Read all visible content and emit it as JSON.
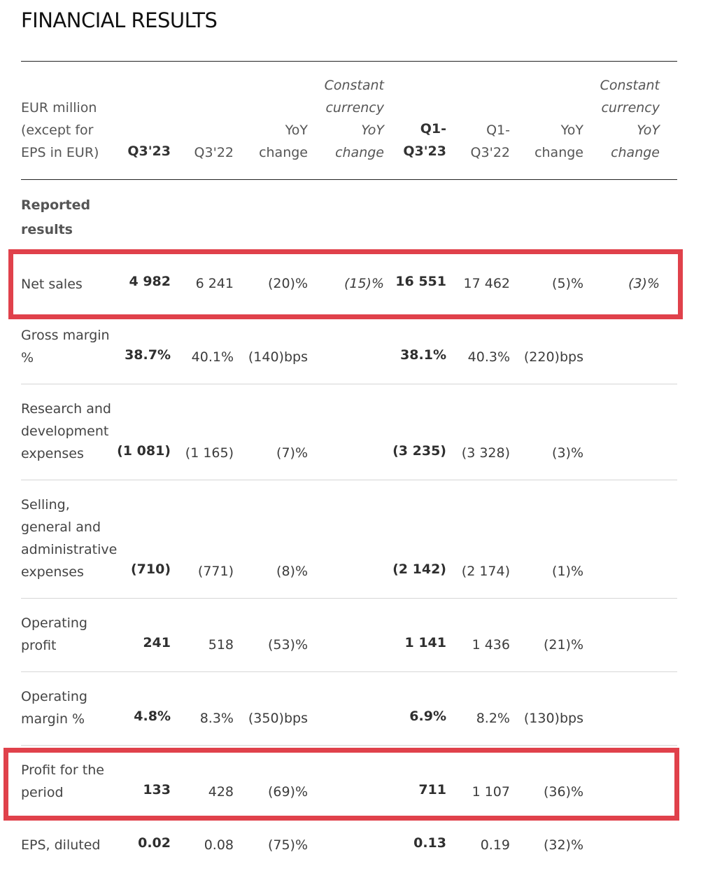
{
  "title": "FINANCIAL RESULTS",
  "header": {
    "unit_label": [
      "EUR million",
      "(except for",
      "EPS in EUR)"
    ],
    "q3_23": "Q3'23",
    "q3_22": "Q3'22",
    "yoy": [
      "YoY",
      "change"
    ],
    "cc": [
      "Constant",
      "currency",
      "YoY",
      "change"
    ],
    "q1q3_23": [
      "Q1-",
      "Q3'23"
    ],
    "q1q3_22": [
      "Q1-",
      "Q3'22"
    ],
    "yoy2": [
      "YoY",
      "change"
    ],
    "cc2": [
      "Constant",
      "currency",
      "YoY",
      "change"
    ]
  },
  "section_label": [
    "Reported",
    "results"
  ],
  "rows": [
    {
      "label": [
        "Net sales"
      ],
      "q3_23": "4 982",
      "q3_22": "6 241",
      "yoy": "(20)%",
      "cc": "(15)%",
      "ytd_23": "16 551",
      "ytd_22": "17 462",
      "yoy2": "(5)%",
      "cc2": "(3)%",
      "highlighted": true
    },
    {
      "label": [
        "Gross margin",
        "%"
      ],
      "q3_23": "38.7%",
      "q3_22": "40.1%",
      "yoy": "(140)bps",
      "cc": "",
      "ytd_23": "38.1%",
      "ytd_22": "40.3%",
      "yoy2": "(220)bps",
      "cc2": ""
    },
    {
      "label": [
        "Research and",
        "development",
        "expenses"
      ],
      "q3_23": "(1 081)",
      "q3_22": "(1 165)",
      "yoy": "(7)%",
      "cc": "",
      "ytd_23": "(3 235)",
      "ytd_22": "(3 328)",
      "yoy2": "(3)%",
      "cc2": ""
    },
    {
      "label": [
        "Selling,",
        "general and",
        "administrative",
        "expenses"
      ],
      "q3_23": "(710)",
      "q3_22": "(771)",
      "yoy": "(8)%",
      "cc": "",
      "ytd_23": "(2 142)",
      "ytd_22": "(2 174)",
      "yoy2": "(1)%",
      "cc2": ""
    },
    {
      "label": [
        "Operating",
        "profit"
      ],
      "q3_23": "241",
      "q3_22": "518",
      "yoy": "(53)%",
      "cc": "",
      "ytd_23": "1 141",
      "ytd_22": "1 436",
      "yoy2": "(21)%",
      "cc2": ""
    },
    {
      "label": [
        "Operating",
        "margin %"
      ],
      "q3_23": "4.8%",
      "q3_22": "8.3%",
      "yoy": "(350)bps",
      "cc": "",
      "ytd_23": "6.9%",
      "ytd_22": "8.2%",
      "yoy2": "(130)bps",
      "cc2": ""
    },
    {
      "label": [
        "Profit for the",
        "period"
      ],
      "q3_23": "133",
      "q3_22": "428",
      "yoy": "(69)%",
      "cc": "",
      "ytd_23": "711",
      "ytd_22": "1 107",
      "yoy2": "(36)%",
      "cc2": "",
      "highlighted": true
    },
    {
      "label": [
        "EPS, diluted"
      ],
      "q3_23": "0.02",
      "q3_22": "0.08",
      "yoy": "(75)%",
      "cc": "",
      "ytd_23": "0.13",
      "ytd_22": "0.19",
      "yoy2": "(32)%",
      "cc2": ""
    }
  ],
  "colors": {
    "highlight": "#e0414b",
    "rule": "#222222",
    "divider": "#d6d6d6"
  }
}
